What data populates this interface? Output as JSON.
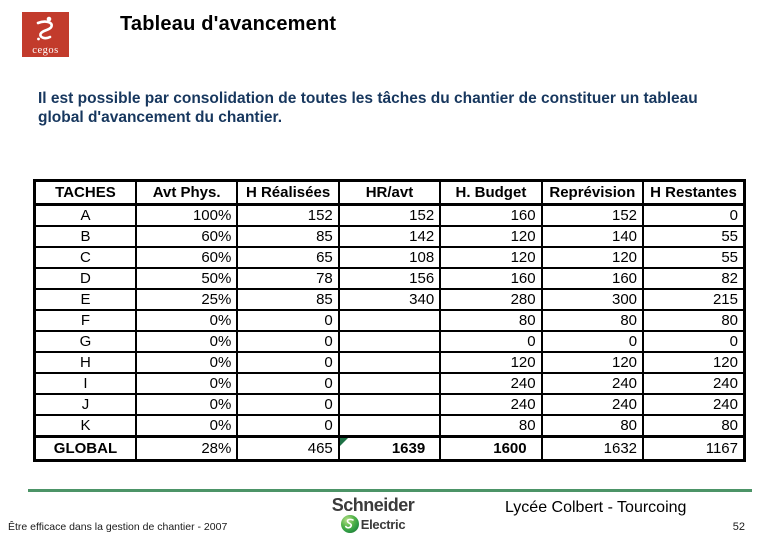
{
  "logo": {
    "brand": "cegos"
  },
  "header": {
    "title": "Tableau d'avancement"
  },
  "intro": "Il est possible par consolidation de toutes les tâches du chantier de constituer un tableau global d'avancement du chantier.",
  "table": {
    "columns": [
      "TACHES",
      "Avt Phys.",
      "H Réalisées",
      "HR/avt",
      "H. Budget",
      "Reprévision",
      "H Restantes"
    ],
    "rows": [
      [
        "A",
        "100%",
        "152",
        "152",
        "160",
        "152",
        "0"
      ],
      [
        "B",
        "60%",
        "85",
        "142",
        "120",
        "140",
        "55"
      ],
      [
        "C",
        "60%",
        "65",
        "108",
        "120",
        "120",
        "55"
      ],
      [
        "D",
        "50%",
        "78",
        "156",
        "160",
        "160",
        "82"
      ],
      [
        "E",
        "25%",
        "85",
        "340",
        "280",
        "300",
        "215"
      ],
      [
        "F",
        "0%",
        "0",
        "",
        "80",
        "80",
        "80"
      ],
      [
        "G",
        "0%",
        "0",
        "",
        "0",
        "0",
        "0"
      ],
      [
        "H",
        "0%",
        "0",
        "",
        "120",
        "120",
        "120"
      ],
      [
        "I",
        "0%",
        "0",
        "",
        "240",
        "240",
        "240"
      ],
      [
        "J",
        "0%",
        "0",
        "",
        "240",
        "240",
        "240"
      ],
      [
        "K",
        "0%",
        "0",
        "",
        "80",
        "80",
        "80"
      ]
    ],
    "global_row": [
      "GLOBAL",
      "28%",
      "465",
      "1639",
      "1600",
      "1632",
      "1167"
    ],
    "comment_marker_col": 3
  },
  "footer": {
    "left": "Être efficace dans la gestion de chantier - 2007",
    "schneider_line1": "Schneider",
    "schneider_line2": "Electric",
    "right": "Lycée Colbert - Tourcoing",
    "page": "52"
  },
  "colors": {
    "brand_red": "#C23B2C",
    "intro_blue": "#17375E",
    "footer_line_green": "#4C9467",
    "schneider_green": "#2E9B44",
    "marker_green": "#1E7145"
  }
}
